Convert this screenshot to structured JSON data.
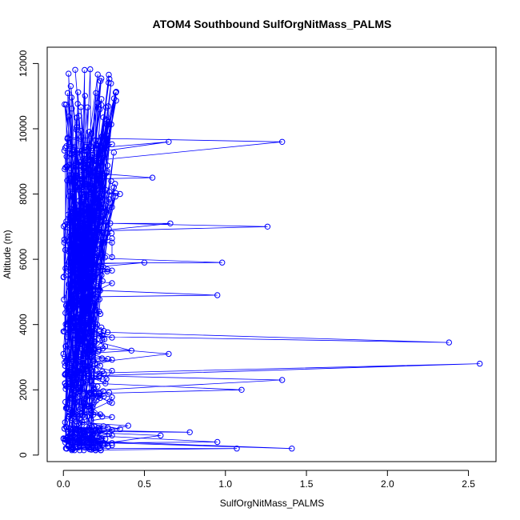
{
  "chart_data": {
    "type": "line",
    "title": "ATOM4 Southbound SulfOrgNitMass_PALMS",
    "xlabel": "SulfOrgNitMass_PALMS",
    "ylabel": "Altitude (m)",
    "xlim": [
      -0.1,
      2.67
    ],
    "ylim": [
      -200,
      12500
    ],
    "xticks": [
      "0.0",
      "0.5",
      "1.0",
      "1.5",
      "2.0",
      "2.5"
    ],
    "xtick_values": [
      0,
      0.5,
      1.0,
      1.5,
      2.0,
      2.5
    ],
    "yticks": [
      "0",
      "2000",
      "4000",
      "6000",
      "8000",
      "10000",
      "12000"
    ],
    "ytick_values": [
      0,
      2000,
      4000,
      6000,
      8000,
      10000,
      12000
    ],
    "grid": false,
    "series_color": "#0000ff",
    "marker": "open-circle",
    "series": [
      {
        "x": [
          0.02,
          0.08,
          0.15,
          0.25,
          0.42,
          0.14,
          0.06,
          0.22,
          0.12,
          0.05,
          0.35,
          0.1,
          0.18,
          0.65,
          0.2,
          0.08,
          0.3,
          0.12,
          0.05,
          0.19,
          1.35,
          0.22,
          0.1,
          0.55,
          0.16,
          0.07,
          1.26,
          0.25,
          0.12,
          0.5,
          0.18,
          0.09,
          0.98,
          0.15,
          0.05,
          0.66,
          0.2,
          0.1,
          0.95,
          0.22,
          0.12,
          0.3,
          0.15,
          0.05,
          0.22,
          0.1,
          2.38,
          0.18,
          0.08,
          0.65,
          0.2,
          0.12,
          2.57,
          0.25,
          1.1,
          0.3,
          0.15,
          1.35,
          0.22,
          0.1,
          0.4,
          0.18,
          1.07,
          0.95,
          0.6,
          0.3,
          0.12,
          0.78,
          0.15,
          0.05,
          1.41,
          0.2,
          0.1,
          0.35,
          0.08,
          0.02
        ],
        "y": [
          200,
          800,
          1500,
          2500,
          3200,
          4200,
          5000,
          5800,
          6500,
          7200,
          8000,
          8800,
          9400,
          9600,
          9000,
          8200,
          7600,
          7000,
          6400,
          6000,
          9600,
          9200,
          8600,
          8500,
          8000,
          7500,
          7000,
          6500,
          6000,
          5900,
          5400,
          5000,
          5900,
          6400,
          6900,
          7100,
          6600,
          6000,
          4900,
          4400,
          3900,
          3600,
          3200,
          2800,
          2400,
          3000,
          3450,
          3800,
          4200,
          3100,
          2600,
          2200,
          2800,
          1800,
          2000,
          1600,
          1200,
          2300,
          1900,
          1400,
          900,
          600,
          200,
          400,
          600,
          300,
          700,
          700,
          500,
          300,
          200,
          400,
          600,
          800,
          500,
          200
        ]
      }
    ],
    "noise_seed": 7
  }
}
